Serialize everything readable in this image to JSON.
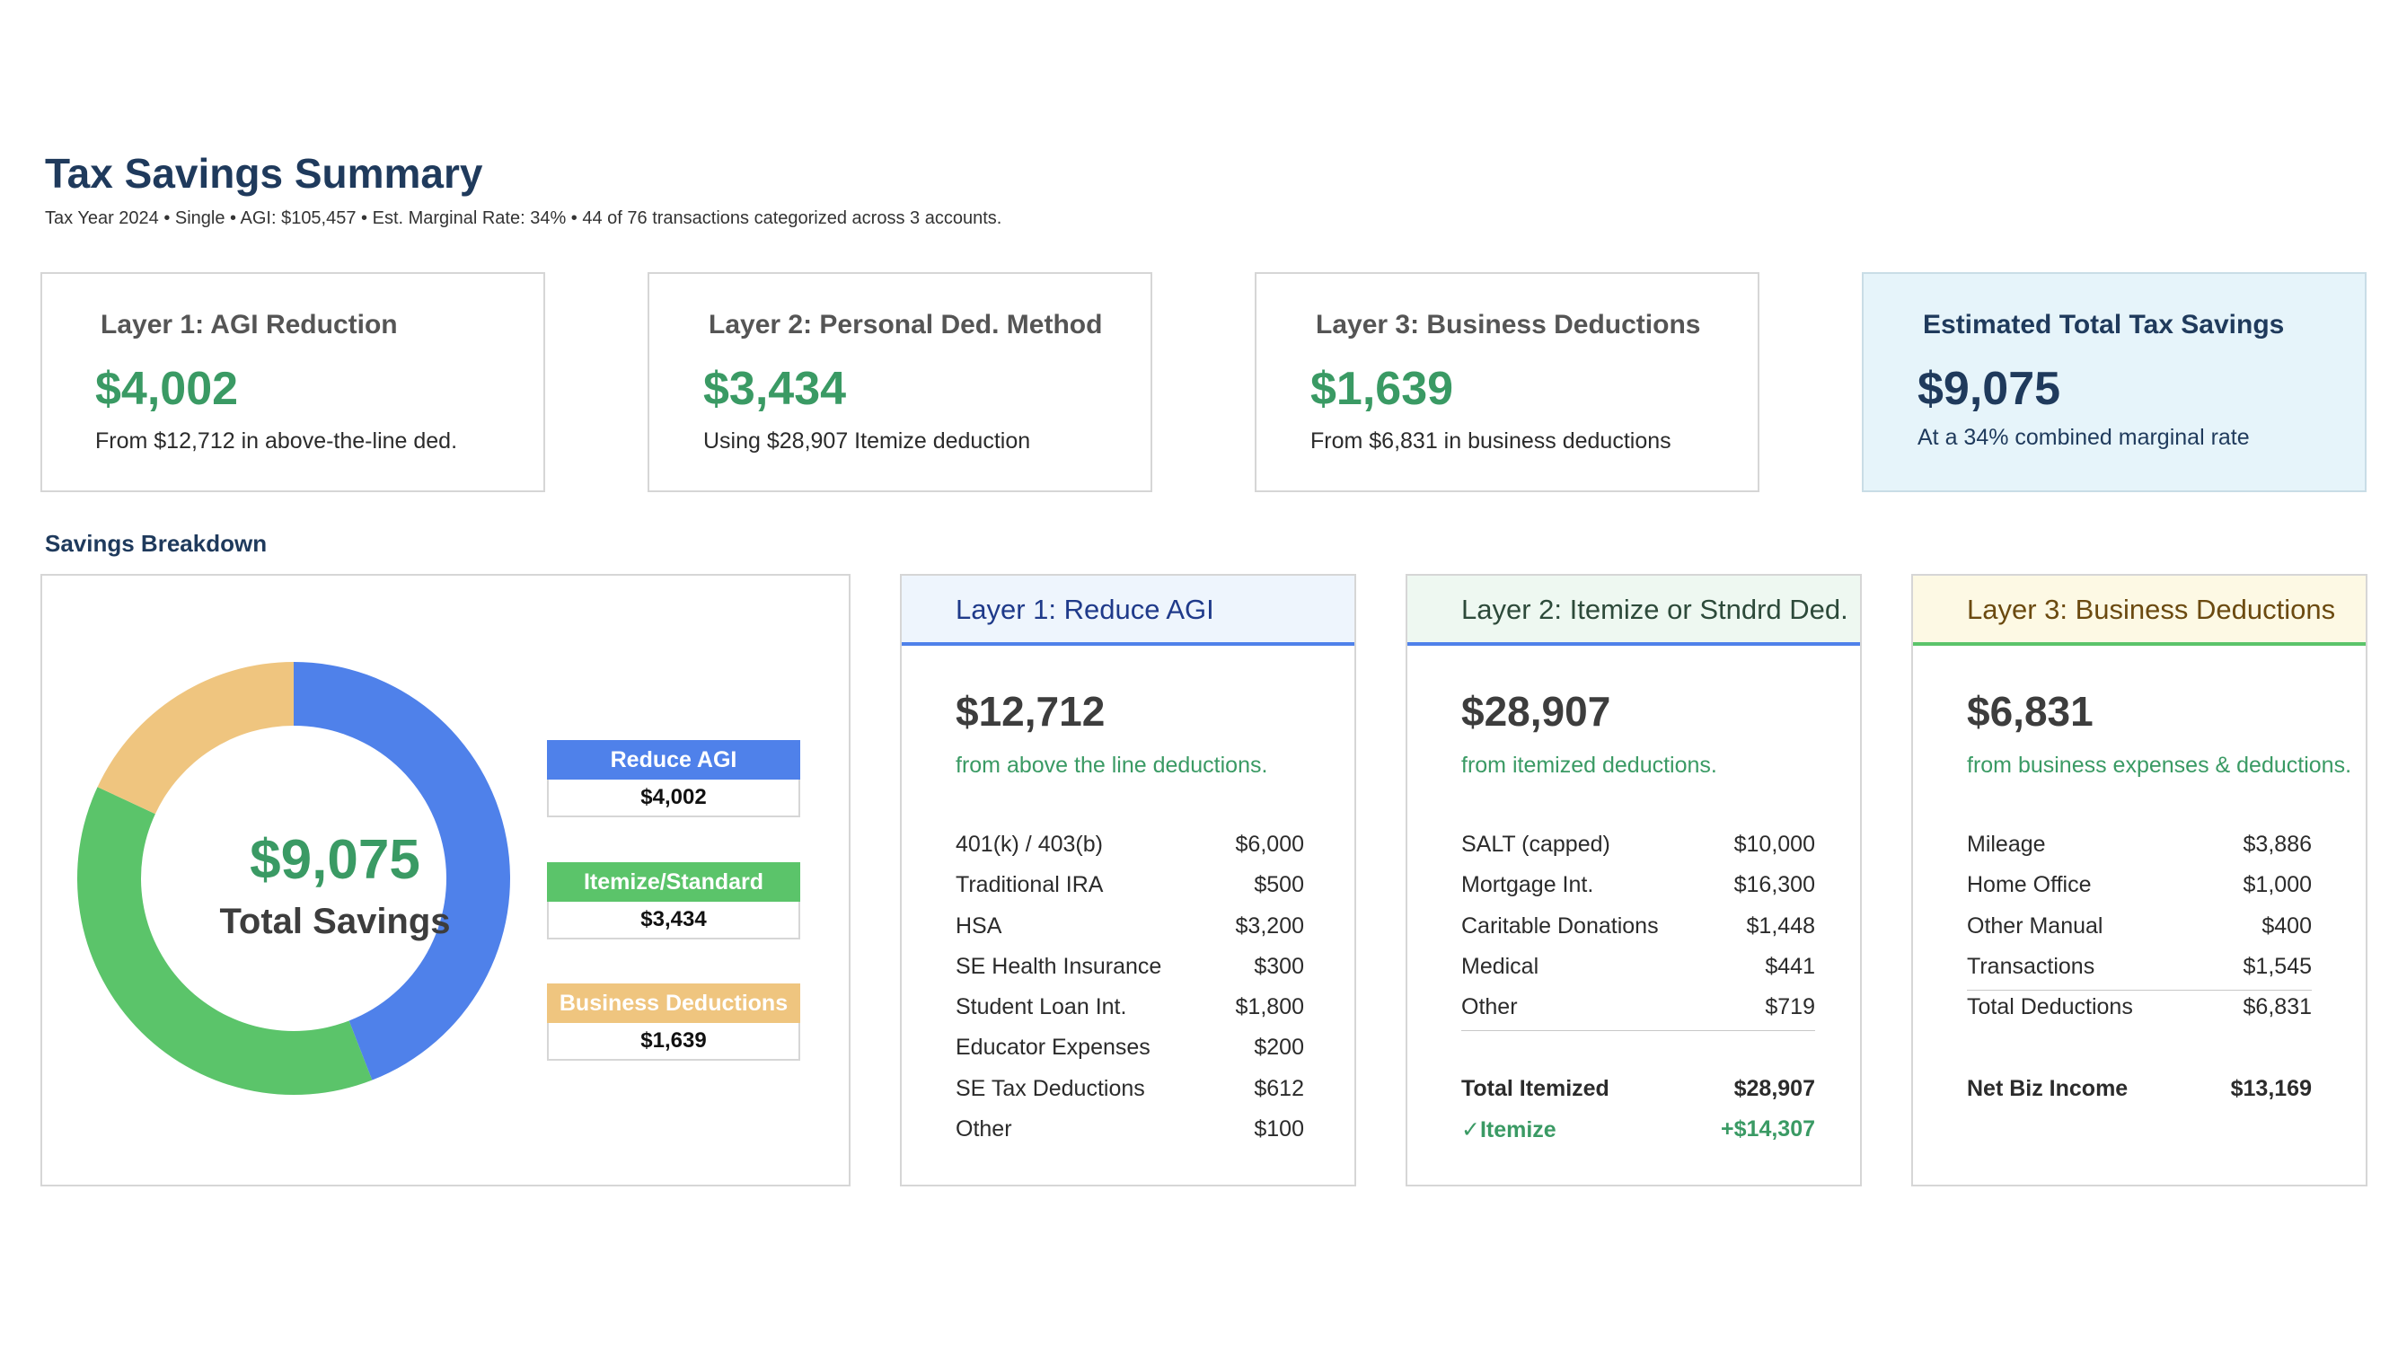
{
  "header": {
    "title": "Tax Savings Summary",
    "subtitle": "Tax Year 2024 • Single • AGI: $105,457 • Est. Marginal Rate: 34% • 44 of 76 transactions categorized across 3 accounts."
  },
  "cards": [
    {
      "title": "Layer 1: AGI Reduction",
      "value": "$4,002",
      "sub": "From $12,712 in above-the-line ded."
    },
    {
      "title": "Layer 2: Personal Ded. Method",
      "value": "$3,434",
      "sub": "Using $28,907 Itemize deduction"
    },
    {
      "title": "Layer 3: Business Deductions",
      "value": "$1,639",
      "sub": "From $6,831 in business deductions"
    },
    {
      "title": "Estimated Total Tax Savings",
      "value": "$9,075",
      "sub": "At a 34% combined marginal rate"
    }
  ],
  "breakdown": {
    "section_title": "Savings Breakdown",
    "center_value": "$9,075",
    "center_label": "Total Savings",
    "legend": [
      {
        "label": "Reduce AGI",
        "value": "$4,002"
      },
      {
        "label": "Itemize/Standard",
        "value": "$3,434"
      },
      {
        "label": "Business Deductions",
        "value": "$1,639"
      }
    ]
  },
  "chart_data": {
    "type": "pie",
    "categories": [
      "Reduce AGI",
      "Itemize/Standard",
      "Business Deductions"
    ],
    "values": [
      4002,
      3434,
      1639
    ],
    "colors": [
      "#4f81ea",
      "#5bc46a",
      "#efc57f"
    ],
    "title": "",
    "center_text": "$9,075 Total Savings",
    "legend": "right"
  },
  "layers": [
    {
      "title": "Layer 1: Reduce AGI",
      "amount": "$12,712",
      "sub": "from above the line deductions.",
      "rows": [
        {
          "label": "401(k) / 403(b)",
          "value": "$6,000"
        },
        {
          "label": "Traditional IRA",
          "value": "$500"
        },
        {
          "label": "HSA",
          "value": "$3,200"
        },
        {
          "label": "SE Health Insurance",
          "value": "$300"
        },
        {
          "label": "Student Loan Int.",
          "value": "$1,800"
        },
        {
          "label": "Educator Expenses",
          "value": "$200"
        },
        {
          "label": "SE Tax Deductions",
          "value": "$612"
        },
        {
          "label": "Other",
          "value": "$100"
        }
      ]
    },
    {
      "title": "Layer 2: Itemize or Stndrd Ded.",
      "amount": "$28,907",
      "sub": "from itemized deductions.",
      "rows": [
        {
          "label": "SALT (capped)",
          "value": "$10,000"
        },
        {
          "label": "Mortgage Int.",
          "value": "$16,300"
        },
        {
          "label": "Caritable Donations",
          "value": "$1,448"
        },
        {
          "label": "Medical",
          "value": "$441"
        },
        {
          "label": "Other",
          "value": "$719"
        }
      ],
      "total_label": "Total Itemized",
      "total_value": "$28,907",
      "choice_label": "✓Itemize",
      "choice_value": "+$14,307"
    },
    {
      "title": "Layer 3: Business Deductions",
      "amount": "$6,831",
      "sub": "from business expenses & deductions.",
      "rows": [
        {
          "label": "Mileage",
          "value": "$3,886"
        },
        {
          "label": "Home Office",
          "value": "$1,000"
        },
        {
          "label": "Other Manual",
          "value": "$400"
        },
        {
          "label": "Transactions",
          "value": "$1,545"
        },
        {
          "label": "Total Deductions",
          "value": "$6,831"
        }
      ],
      "net_label": "Net Biz Income",
      "net_value": "$13,169"
    }
  ]
}
